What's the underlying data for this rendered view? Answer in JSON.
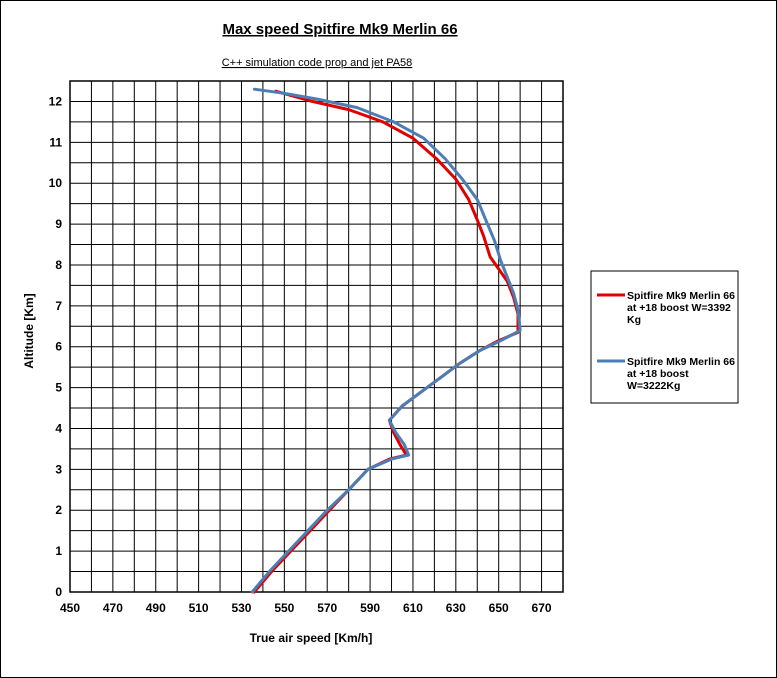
{
  "chart_data": {
    "type": "line",
    "title": "Max speed Spitfire Mk9 Merlin 66",
    "subtitle": "C++ simulation code prop and jet PA58",
    "xlabel": "True air speed [Km/h]",
    "ylabel": "Altitude [Km]",
    "xlim": [
      450,
      680
    ],
    "ylim": [
      0,
      12.5
    ],
    "x_ticks": [
      450,
      470,
      490,
      510,
      530,
      550,
      570,
      590,
      610,
      630,
      650,
      670
    ],
    "x_minor_step": 10,
    "y_ticks": [
      0,
      1,
      2,
      3,
      4,
      5,
      6,
      7,
      8,
      9,
      10,
      11,
      12
    ],
    "y_minor_step": 0.5,
    "grid": true,
    "legend_position": "right",
    "series": [
      {
        "name_lines": [
          "Spitfire Mk9 Merlin 66",
          "at +18 boost W=3392",
          "Kg"
        ],
        "color": "#e00000",
        "points": [
          [
            536,
            0
          ],
          [
            544,
            0.5
          ],
          [
            553,
            1
          ],
          [
            562,
            1.5
          ],
          [
            571,
            2
          ],
          [
            580,
            2.5
          ],
          [
            589,
            3
          ],
          [
            599,
            3.25
          ],
          [
            607,
            3.35
          ],
          [
            604,
            3.6
          ],
          [
            601,
            3.9
          ],
          [
            599,
            4.2
          ],
          [
            605,
            4.55
          ],
          [
            614,
            4.9
          ],
          [
            623,
            5.25
          ],
          [
            632,
            5.6
          ],
          [
            641,
            5.9
          ],
          [
            650,
            6.15
          ],
          [
            659,
            6.35
          ],
          [
            659,
            6.8
          ],
          [
            657,
            7.2
          ],
          [
            654,
            7.6
          ],
          [
            650,
            7.9
          ],
          [
            646,
            8.2
          ],
          [
            643,
            8.7
          ],
          [
            640,
            9.1
          ],
          [
            636,
            9.6
          ],
          [
            630,
            10.1
          ],
          [
            621,
            10.6
          ],
          [
            610,
            11.1
          ],
          [
            596,
            11.5
          ],
          [
            580,
            11.8
          ],
          [
            563,
            12
          ],
          [
            546,
            12.25
          ]
        ]
      },
      {
        "name_lines": [
          "Spitfire Mk9 Merlin 66",
          "at +18 boost",
          "W=3222Kg"
        ],
        "color": "#4a7eb5",
        "points": [
          [
            535,
            0
          ],
          [
            543,
            0.5
          ],
          [
            552,
            1
          ],
          [
            561,
            1.5
          ],
          [
            570,
            2
          ],
          [
            580,
            2.5
          ],
          [
            589,
            3
          ],
          [
            600,
            3.25
          ],
          [
            608,
            3.35
          ],
          [
            606,
            3.6
          ],
          [
            602,
            3.9
          ],
          [
            599,
            4.2
          ],
          [
            605,
            4.55
          ],
          [
            614,
            4.9
          ],
          [
            623,
            5.25
          ],
          [
            632,
            5.6
          ],
          [
            641,
            5.9
          ],
          [
            651,
            6.15
          ],
          [
            660,
            6.4
          ],
          [
            659,
            6.9
          ],
          [
            657,
            7.3
          ],
          [
            654,
            7.7
          ],
          [
            651,
            8.1
          ],
          [
            648,
            8.6
          ],
          [
            644,
            9.1
          ],
          [
            640,
            9.6
          ],
          [
            633,
            10.1
          ],
          [
            625,
            10.6
          ],
          [
            615,
            11.1
          ],
          [
            601,
            11.5
          ],
          [
            584,
            11.85
          ],
          [
            566,
            12.05
          ],
          [
            550,
            12.2
          ],
          [
            536,
            12.3
          ]
        ]
      }
    ]
  }
}
